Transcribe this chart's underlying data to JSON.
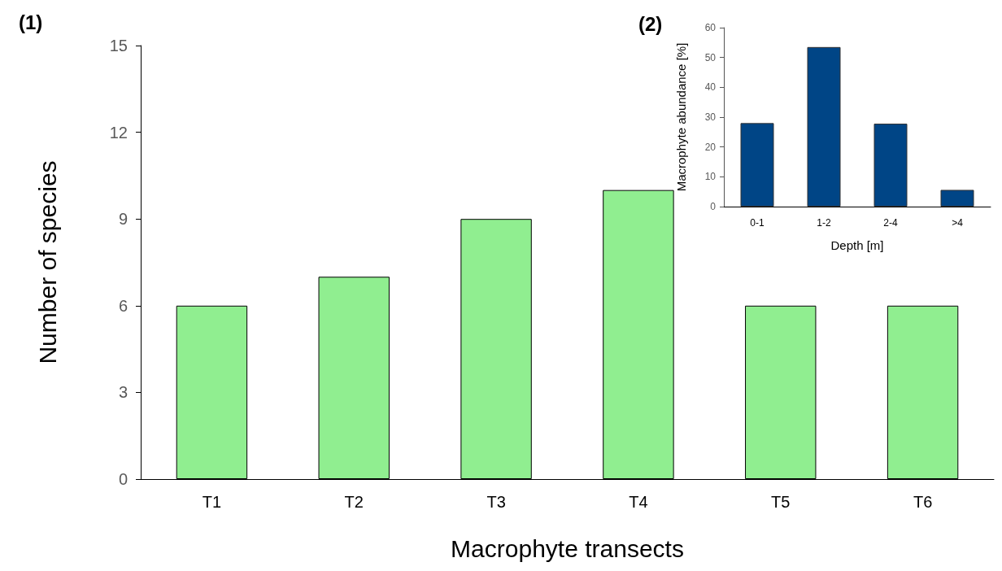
{
  "chart_data": [
    {
      "type": "bar",
      "title": "(1)",
      "xlabel": "Macrophyte transects",
      "ylabel": "Number of species",
      "categories": [
        "T1",
        "T2",
        "T3",
        "T4",
        "T5",
        "T6"
      ],
      "values": [
        6,
        7,
        9,
        10,
        6,
        6
      ],
      "color": "#90ee90",
      "ylim": [
        0,
        15
      ],
      "yticks": [
        0,
        3,
        6,
        9,
        12,
        15
      ],
      "grid": false
    },
    {
      "type": "bar",
      "title": "(2)",
      "xlabel": "Depth [m]",
      "ylabel": "Macrophyte abundance [%]",
      "categories": [
        "0-1",
        "1-2",
        "2-4",
        ">4"
      ],
      "values": [
        28,
        53.5,
        27.8,
        5.6
      ],
      "color": "#004586",
      "ylim": [
        0,
        60
      ],
      "yticks": [
        0,
        10,
        20,
        30,
        40,
        50,
        60
      ],
      "grid": false
    }
  ]
}
